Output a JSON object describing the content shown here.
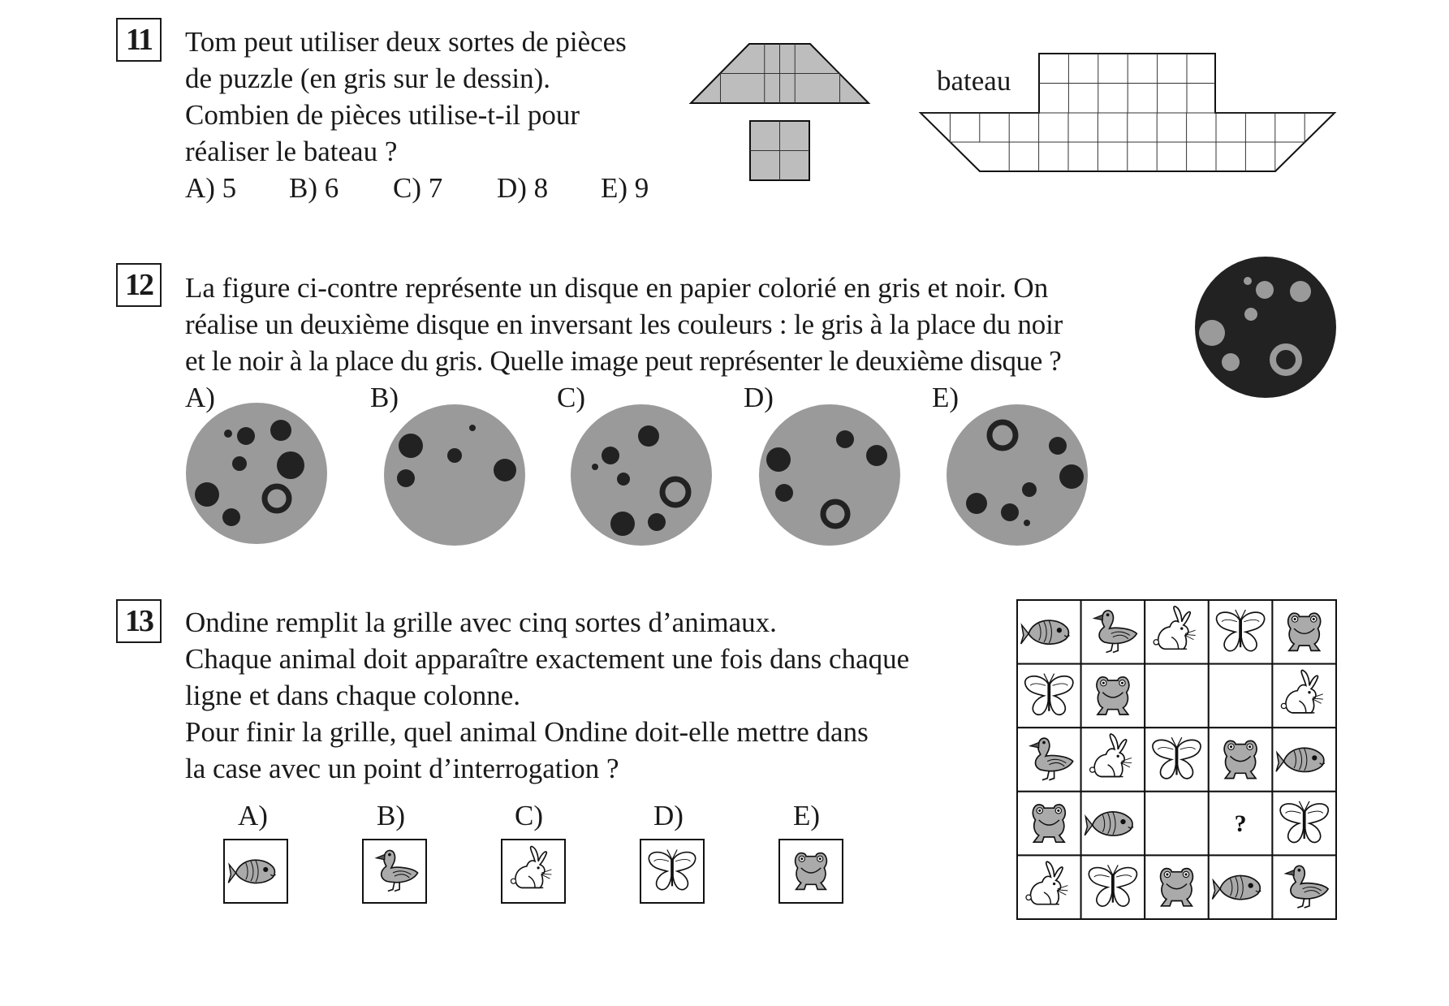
{
  "q11": {
    "number": "11",
    "lines": [
      "Tom peut utiliser deux sortes de pièces",
      "de puzzle (en gris sur le dessin).",
      "Combien de pièces utilise-t-il pour",
      "réaliser le bateau ?"
    ],
    "options": [
      "A) 5",
      "B) 6",
      "C) 7",
      "D) 8",
      "E) 9"
    ],
    "boat_label": "bateau",
    "piece_fill": "#bdbdbd"
  },
  "q12": {
    "number": "12",
    "lines": [
      "La figure ci-contre représente un disque en papier colorié en gris et noir. On",
      "réalise un deuxième disque en inversant les couleurs : le gris à la place du noir",
      "et le noir à la place du gris. Quelle image peut représenter le deuxième disque ?"
    ],
    "option_labels": [
      "A)",
      "B)",
      "C)",
      "D)",
      "E)"
    ],
    "grey": "#9a9a9a",
    "black": "#222222"
  },
  "q13": {
    "number": "13",
    "lines": [
      "Ondine remplit la grille avec cinq sortes d’animaux.",
      "Chaque animal doit apparaître exactement une fois dans chaque",
      "ligne et dans chaque colonne.",
      "Pour finir la grille, quel animal Ondine doit-elle mettre dans",
      "la case avec un point d’interrogation ?"
    ],
    "option_labels": [
      "A)",
      "B)",
      "C)",
      "D)",
      "E)"
    ],
    "option_animals": [
      "fish-icon",
      "duck-icon",
      "rabbit-icon",
      "butterfly-icon",
      "frog-icon"
    ],
    "grid": [
      [
        "fish-icon",
        "duck-icon",
        "rabbit-icon",
        "butterfly-icon",
        "frog-icon"
      ],
      [
        "butterfly-icon",
        "frog-icon",
        "",
        "",
        "rabbit-icon"
      ],
      [
        "duck-icon",
        "rabbit-icon",
        "butterfly-icon",
        "frog-icon",
        "fish-icon"
      ],
      [
        "frog-icon",
        "fish-icon",
        "",
        "?",
        "butterfly-icon"
      ],
      [
        "rabbit-icon",
        "butterfly-icon",
        "frog-icon",
        "fish-icon",
        "duck-icon"
      ]
    ],
    "question_mark": "?"
  }
}
